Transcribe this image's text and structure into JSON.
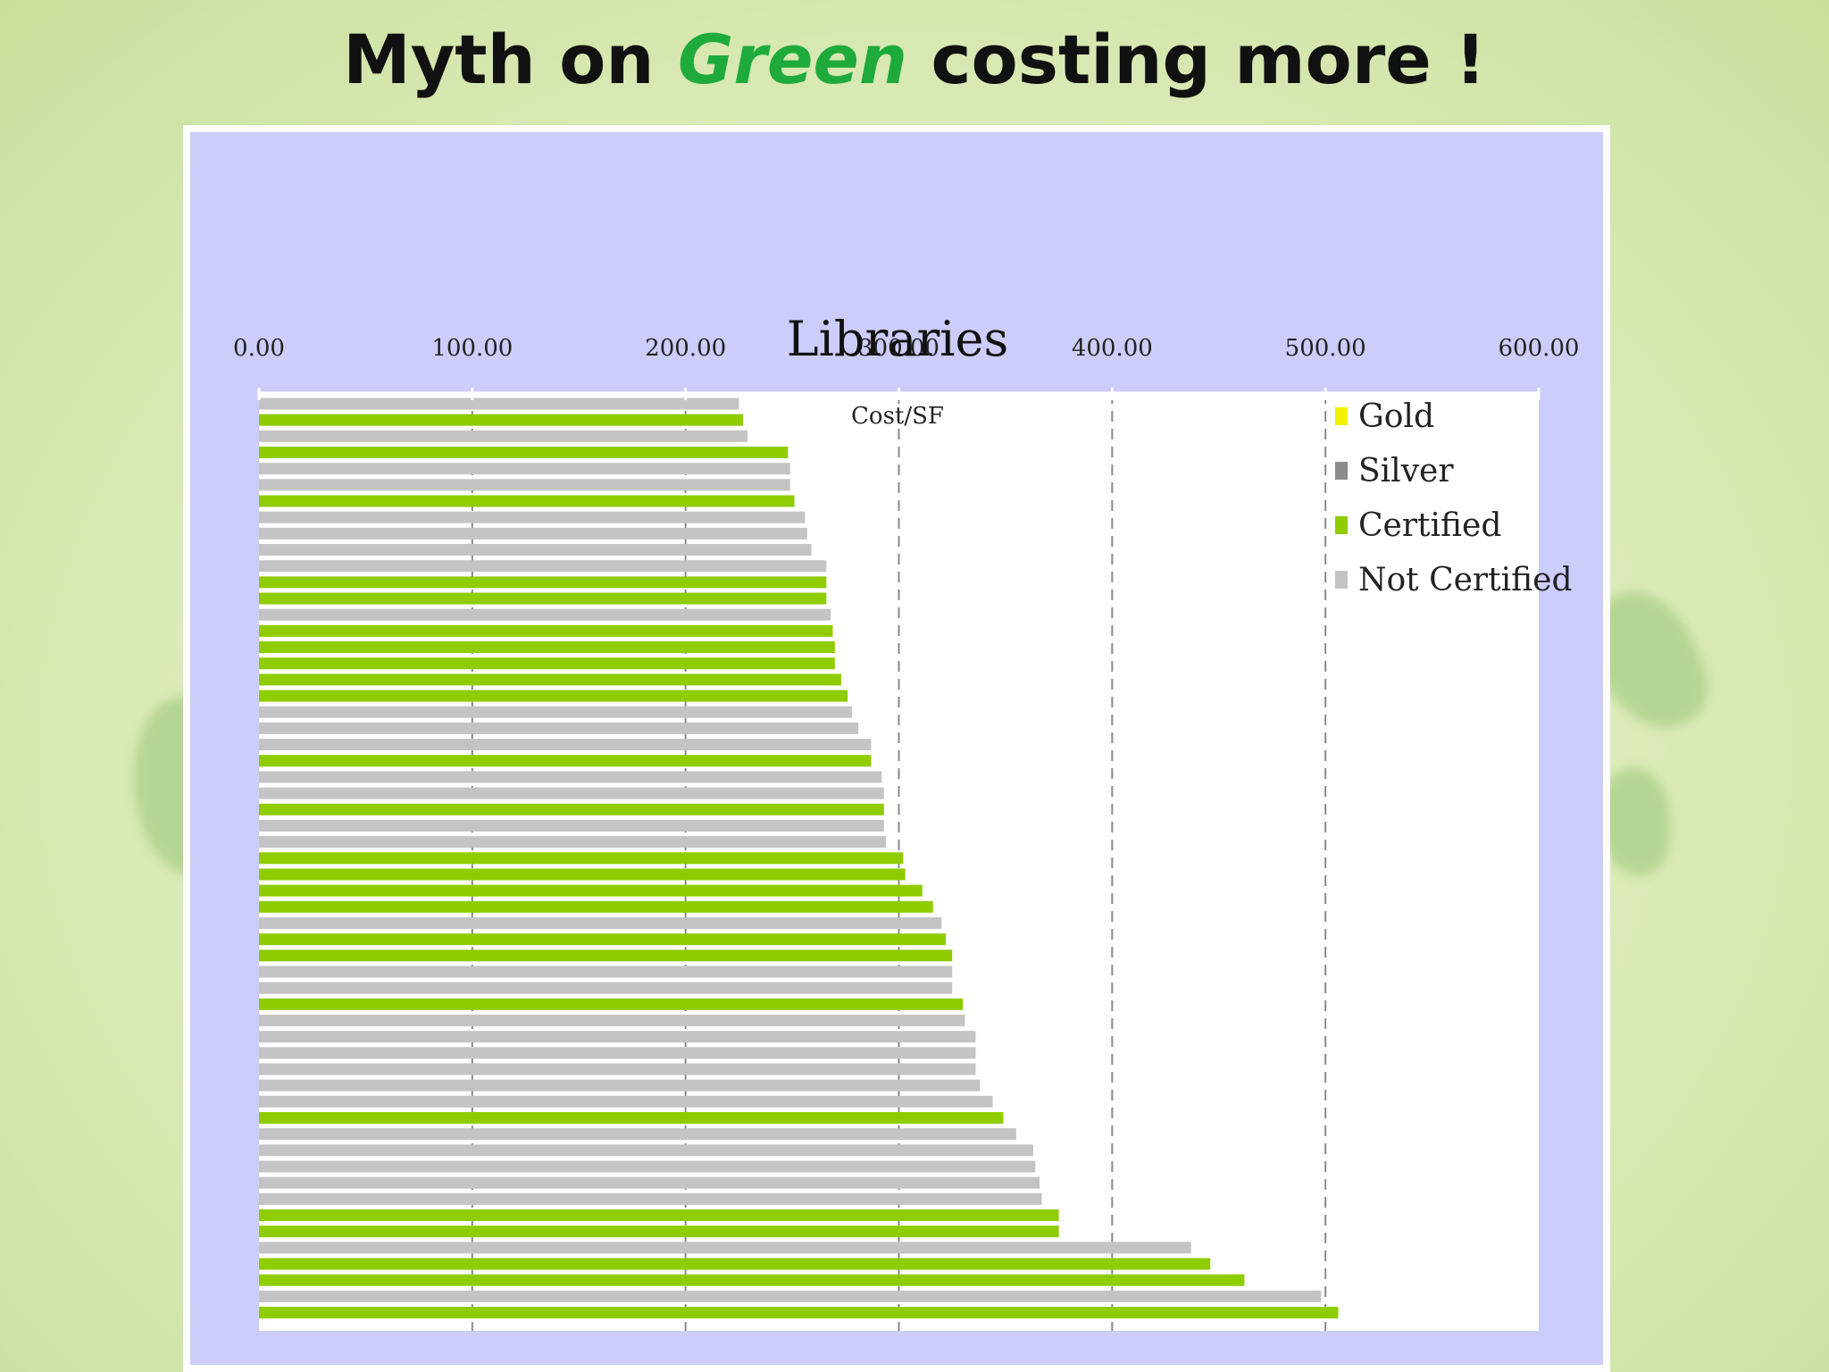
{
  "slide": {
    "title_before": "Myth on ",
    "title_highlight": "Green",
    "title_after": " costing more !"
  },
  "chart_data": {
    "type": "bar",
    "orientation": "horizontal",
    "title": "Libraries",
    "xlabel": "Cost/SF",
    "xlim": [
      0,
      600
    ],
    "x_ticks": [
      "0.00",
      "100.00",
      "200.00",
      "300.00",
      "400.00",
      "500.00",
      "600.00"
    ],
    "x_axis_position": "top",
    "grid": "vertical dashed",
    "legend_position": "top-right",
    "legend": [
      {
        "name": "Gold",
        "color": "#f2f200"
      },
      {
        "name": "Silver",
        "color": "#8c8c8c"
      },
      {
        "name": "Certified",
        "color": "#8fcc00"
      },
      {
        "name": "Not Certified",
        "color": "#c4c4c4"
      }
    ],
    "bars": [
      {
        "value": 225,
        "series": "Not Certified"
      },
      {
        "value": 227,
        "series": "Certified"
      },
      {
        "value": 229,
        "series": "Not Certified"
      },
      {
        "value": 248,
        "series": "Certified"
      },
      {
        "value": 249,
        "series": "Not Certified"
      },
      {
        "value": 249,
        "series": "Not Certified"
      },
      {
        "value": 251,
        "series": "Certified"
      },
      {
        "value": 256,
        "series": "Not Certified"
      },
      {
        "value": 257,
        "series": "Not Certified"
      },
      {
        "value": 259,
        "series": "Not Certified"
      },
      {
        "value": 266,
        "series": "Not Certified"
      },
      {
        "value": 266,
        "series": "Certified"
      },
      {
        "value": 266,
        "series": "Certified"
      },
      {
        "value": 268,
        "series": "Not Certified"
      },
      {
        "value": 269,
        "series": "Certified"
      },
      {
        "value": 270,
        "series": "Certified"
      },
      {
        "value": 270,
        "series": "Certified"
      },
      {
        "value": 273,
        "series": "Certified"
      },
      {
        "value": 276,
        "series": "Certified"
      },
      {
        "value": 278,
        "series": "Not Certified"
      },
      {
        "value": 281,
        "series": "Not Certified"
      },
      {
        "value": 287,
        "series": "Not Certified"
      },
      {
        "value": 287,
        "series": "Certified"
      },
      {
        "value": 292,
        "series": "Not Certified"
      },
      {
        "value": 293,
        "series": "Not Certified"
      },
      {
        "value": 293,
        "series": "Certified"
      },
      {
        "value": 293,
        "series": "Not Certified"
      },
      {
        "value": 294,
        "series": "Not Certified"
      },
      {
        "value": 302,
        "series": "Certified"
      },
      {
        "value": 303,
        "series": "Certified"
      },
      {
        "value": 311,
        "series": "Certified"
      },
      {
        "value": 316,
        "series": "Certified"
      },
      {
        "value": 320,
        "series": "Not Certified"
      },
      {
        "value": 322,
        "series": "Certified"
      },
      {
        "value": 325,
        "series": "Certified"
      },
      {
        "value": 325,
        "series": "Not Certified"
      },
      {
        "value": 325,
        "series": "Not Certified"
      },
      {
        "value": 330,
        "series": "Certified"
      },
      {
        "value": 331,
        "series": "Not Certified"
      },
      {
        "value": 336,
        "series": "Not Certified"
      },
      {
        "value": 336,
        "series": "Not Certified"
      },
      {
        "value": 336,
        "series": "Not Certified"
      },
      {
        "value": 338,
        "series": "Not Certified"
      },
      {
        "value": 344,
        "series": "Not Certified"
      },
      {
        "value": 349,
        "series": "Certified"
      },
      {
        "value": 355,
        "series": "Not Certified"
      },
      {
        "value": 363,
        "series": "Not Certified"
      },
      {
        "value": 364,
        "series": "Not Certified"
      },
      {
        "value": 366,
        "series": "Not Certified"
      },
      {
        "value": 367,
        "series": "Not Certified"
      },
      {
        "value": 375,
        "series": "Certified"
      },
      {
        "value": 375,
        "series": "Certified"
      },
      {
        "value": 437,
        "series": "Not Certified"
      },
      {
        "value": 446,
        "series": "Certified"
      },
      {
        "value": 462,
        "series": "Certified"
      },
      {
        "value": 498,
        "series": "Not Certified"
      },
      {
        "value": 506,
        "series": "Certified"
      }
    ]
  }
}
